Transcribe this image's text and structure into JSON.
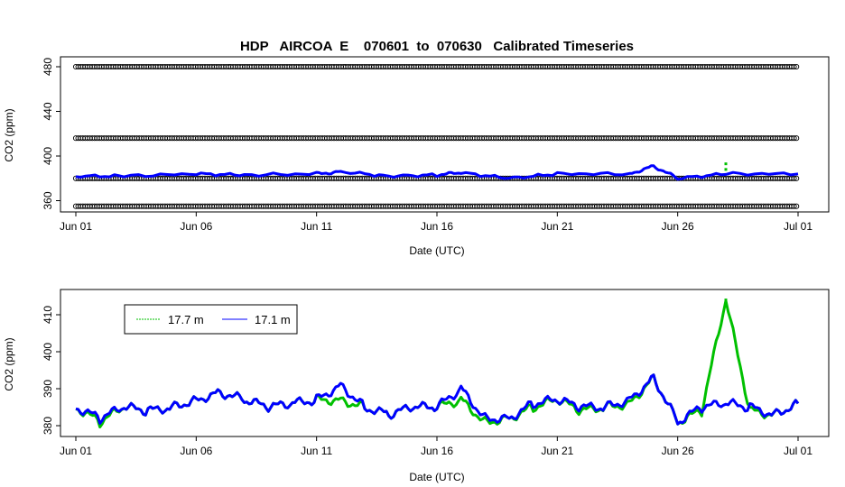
{
  "chart_data": [
    {
      "type": "scatter",
      "title": "HDP   AIRCOA  E    070601  to  070630   Calibrated Timeseries",
      "xlabel": "Date (UTC)",
      "ylabel": "CO2 (ppm)",
      "x_ticks": [
        "Jun 01",
        "Jun 06",
        "Jun 11",
        "Jun 16",
        "Jun 21",
        "Jun 26",
        "Jul 01"
      ],
      "xlim": [
        "2007-06-01",
        "2007-07-01"
      ],
      "y_ticks": [
        360,
        400,
        440,
        480
      ],
      "ylim": [
        350,
        485
      ],
      "series": [
        {
          "values": [
            {
              "y": 355
            },
            {
              "y": 380
            },
            {
              "y": 416
            },
            {
              "y": 480
            }
          ]
        },
        {
          "name": "17.1 m",
          "values": [
            {
              "x": "2007-06-01",
              "y": 382
            },
            {
              "x": "2007-06-03",
              "y": 382
            },
            {
              "x": "2007-06-06",
              "y": 384
            },
            {
              "x": "2007-06-08",
              "y": 383
            },
            {
              "x": "2007-06-11",
              "y": 384
            },
            {
              "x": "2007-06-12",
              "y": 386
            },
            {
              "x": "2007-06-14",
              "y": 382
            },
            {
              "x": "2007-06-16",
              "y": 383
            },
            {
              "x": "2007-06-17",
              "y": 385
            },
            {
              "x": "2007-06-19",
              "y": 380
            },
            {
              "x": "2007-06-21",
              "y": 384
            },
            {
              "x": "2007-06-24",
              "y": 384
            },
            {
              "x": "2007-06-25",
              "y": 391
            },
            {
              "x": "2007-06-26",
              "y": 380
            },
            {
              "x": "2007-06-28",
              "y": 384
            },
            {
              "x": "2007-07-01",
              "y": 384
            }
          ]
        }
      ],
      "colors": {
        "reference": "#000000",
        "17.7 m": "#00c000",
        "17.1 m": "#0000ff"
      }
    },
    {
      "type": "line",
      "title": "",
      "xlabel": "Date (UTC)",
      "ylabel": "CO2 (ppm)",
      "x_ticks": [
        "Jun 01",
        "Jun 06",
        "Jun 11",
        "Jun 16",
        "Jun 21",
        "Jun 26",
        "Jul 01"
      ],
      "xlim": [
        "2007-06-01",
        "2007-07-01"
      ],
      "y_ticks": [
        380,
        390,
        400,
        410
      ],
      "ylim": [
        378,
        414
      ],
      "legend": [
        "17.7 m",
        "17.1 m"
      ],
      "legend_position": "top-left",
      "series": [
        {
          "name": "17.7 m",
          "color": "#00c000",
          "values": [
            {
              "x": "2007-06-01",
              "y": 385
            },
            {
              "x": "2007-06-02",
              "y": 381
            },
            {
              "x": "2007-06-03",
              "y": 385
            },
            {
              "x": "2007-06-04",
              "y": 384
            },
            {
              "x": "2007-06-05",
              "y": 385
            },
            {
              "x": "2007-06-06",
              "y": 387
            },
            {
              "x": "2007-06-07",
              "y": 389
            },
            {
              "x": "2007-06-08",
              "y": 387
            },
            {
              "x": "2007-06-09",
              "y": 385
            },
            {
              "x": "2007-06-10",
              "y": 386
            },
            {
              "x": "2007-06-11",
              "y": 387
            },
            {
              "x": "2007-06-12",
              "y": 387
            },
            {
              "x": "2007-06-13",
              "y": 385
            },
            {
              "x": "2007-06-14",
              "y": 383
            },
            {
              "x": "2007-06-15",
              "y": 385
            },
            {
              "x": "2007-06-16",
              "y": 385
            },
            {
              "x": "2007-06-17",
              "y": 387
            },
            {
              "x": "2007-06-18",
              "y": 381
            },
            {
              "x": "2007-06-19",
              "y": 382
            },
            {
              "x": "2007-06-20",
              "y": 385
            },
            {
              "x": "2007-06-21",
              "y": 387
            },
            {
              "x": "2007-06-22",
              "y": 384
            },
            {
              "x": "2007-06-23",
              "y": 385
            },
            {
              "x": "2007-06-24",
              "y": 386
            },
            {
              "x": "2007-06-25",
              "y": 393
            },
            {
              "x": "2007-06-26",
              "y": 381
            },
            {
              "x": "2007-06-27",
              "y": 384
            },
            {
              "x": "2007-06-28",
              "y": 414
            },
            {
              "x": "2007-06-29",
              "y": 384
            },
            {
              "x": "2007-06-30",
              "y": 383
            },
            {
              "x": "2007-07-01",
              "y": 386
            }
          ]
        },
        {
          "name": "17.1 m",
          "color": "#0000ff",
          "values": [
            {
              "x": "2007-06-01",
              "y": 385
            },
            {
              "x": "2007-06-02",
              "y": 382
            },
            {
              "x": "2007-06-03",
              "y": 385
            },
            {
              "x": "2007-06-04",
              "y": 384
            },
            {
              "x": "2007-06-05",
              "y": 385
            },
            {
              "x": "2007-06-06",
              "y": 387
            },
            {
              "x": "2007-06-07",
              "y": 389
            },
            {
              "x": "2007-06-08",
              "y": 387
            },
            {
              "x": "2007-06-09",
              "y": 385
            },
            {
              "x": "2007-06-10",
              "y": 386
            },
            {
              "x": "2007-06-11",
              "y": 387
            },
            {
              "x": "2007-06-12",
              "y": 391
            },
            {
              "x": "2007-06-13",
              "y": 385
            },
            {
              "x": "2007-06-14",
              "y": 383
            },
            {
              "x": "2007-06-15",
              "y": 385
            },
            {
              "x": "2007-06-16",
              "y": 385
            },
            {
              "x": "2007-06-17",
              "y": 390
            },
            {
              "x": "2007-06-18",
              "y": 382
            },
            {
              "x": "2007-06-19",
              "y": 382
            },
            {
              "x": "2007-06-20",
              "y": 386
            },
            {
              "x": "2007-06-21",
              "y": 387
            },
            {
              "x": "2007-06-22",
              "y": 385
            },
            {
              "x": "2007-06-23",
              "y": 385
            },
            {
              "x": "2007-06-24",
              "y": 387
            },
            {
              "x": "2007-06-25",
              "y": 393
            },
            {
              "x": "2007-06-26",
              "y": 381
            },
            {
              "x": "2007-06-27",
              "y": 385
            },
            {
              "x": "2007-06-28",
              "y": 386
            },
            {
              "x": "2007-06-29",
              "y": 385
            },
            {
              "x": "2007-06-30",
              "y": 383
            },
            {
              "x": "2007-07-01",
              "y": 386
            }
          ]
        }
      ]
    }
  ]
}
